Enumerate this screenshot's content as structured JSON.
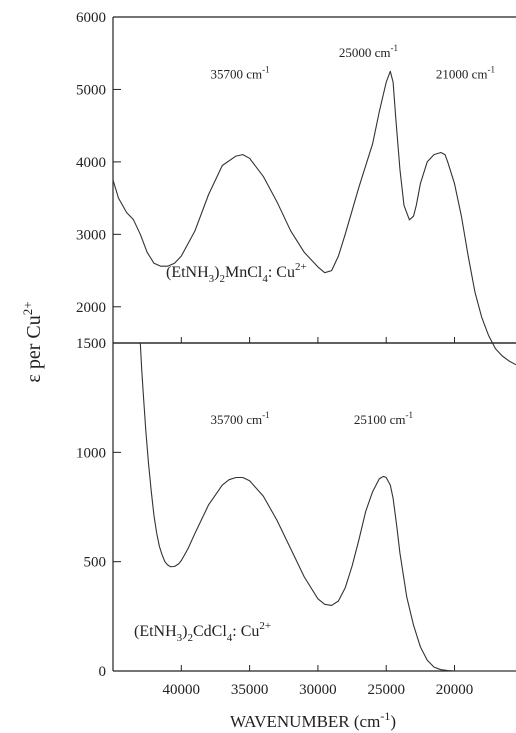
{
  "chart_data": {
    "type": "line",
    "ylabel": {
      "main": "ε per Cu",
      "sup": "2+"
    },
    "xlabel": {
      "main": "WAVENUMBER (cm",
      "sup": "-1",
      "end": ")"
    },
    "x_ticks": [
      40000,
      35000,
      30000,
      25000,
      20000
    ],
    "x_tick_labels": [
      "40000",
      "35000",
      "30000",
      "25000",
      "20000"
    ],
    "xlim": [
      45000,
      15500
    ],
    "panels": [
      {
        "id": "top",
        "sample": {
          "a": "(EtNH",
          "s1": "3",
          "b": ")",
          "s2": "2",
          "c": "MnCl",
          "s3": "4",
          "d": ": Cu",
          "sup": "2+"
        },
        "ylim": [
          1500,
          6000
        ],
        "y_ticks": [
          1500,
          2000,
          3000,
          4000,
          5000,
          6000
        ],
        "y_tick_labels": [
          "1500",
          "2000",
          "3000",
          "4000",
          "5000",
          "6000"
        ],
        "annotations": [
          {
            "value": "35700 cm",
            "sup": "-1",
            "x": 35700,
            "y": 5150
          },
          {
            "value": "25000 cm",
            "sup": "-1",
            "x": 26300,
            "y": 5450
          },
          {
            "value": "21000 cm",
            "sup": "-1",
            "x": 19200,
            "y": 5150
          }
        ],
        "series": [
          {
            "x": [
              45000,
              44600,
              44000,
              43500,
              43000,
              42500,
              42000,
              41500,
              41000,
              40500,
              40000,
              39000,
              38000,
              37000,
              36000,
              35500,
              35000,
              34000,
              33000,
              32000,
              31000,
              30000,
              29500,
              29000,
              28500,
              28000,
              27000,
              26000,
              25500,
              25000,
              24700,
              24500,
              24300,
              24000,
              23700,
              23300,
              23000,
              22800,
              22500,
              22000,
              21500,
              21000,
              20700,
              20500,
              20000,
              19500,
              19000,
              18500,
              18000,
              17500,
              17000,
              16500,
              16000,
              15500
            ],
            "y": [
              3750,
              3500,
              3300,
              3200,
              3000,
              2750,
              2600,
              2560,
              2560,
              2600,
              2700,
              3050,
              3550,
              3950,
              4080,
              4100,
              4050,
              3800,
              3450,
              3050,
              2750,
              2550,
              2470,
              2500,
              2700,
              3000,
              3650,
              4250,
              4700,
              5100,
              5250,
              5100,
              4600,
              3900,
              3400,
              3200,
              3250,
              3400,
              3700,
              4000,
              4100,
              4130,
              4100,
              4000,
              3700,
              3250,
              2700,
              2200,
              1850,
              1600,
              1420,
              1320,
              1250,
              1200
            ]
          }
        ]
      },
      {
        "id": "bottom",
        "sample": {
          "a": "(EtNH",
          "s1": "3",
          "b": ")",
          "s2": "2",
          "c": "CdCl",
          "s3": "4",
          "d": ": Cu",
          "sup": "2+"
        },
        "ylim": [
          0,
          1500
        ],
        "y_ticks": [
          0,
          500,
          1000,
          1500
        ],
        "y_tick_labels": [
          "0",
          "500",
          "1000",
          "1500"
        ],
        "annotations": [
          {
            "value": "35700 cm",
            "sup": "-1",
            "x": 35700,
            "y": 1130
          },
          {
            "value": "25100 cm",
            "sup": "-1",
            "x": 25200,
            "y": 1130
          }
        ],
        "series": [
          {
            "x": [
              43000,
              42900,
              42800,
              42600,
              42400,
              42200,
              42000,
              41800,
              41600,
              41400,
              41200,
              41000,
              40800,
              40500,
              40200,
              40000,
              39500,
              39000,
              38000,
              37000,
              36500,
              36000,
              35500,
              35000,
              34000,
              33000,
              32000,
              31000,
              30000,
              29500,
              29000,
              28500,
              28000,
              27500,
              27000,
              26500,
              26000,
              25500,
              25200,
              25000,
              24700,
              24500,
              24200,
              24000,
              23700,
              23500,
              23000,
              22500,
              22000,
              21500,
              21000,
              20500,
              20000,
              19500,
              19000,
              18000,
              17000,
              16000,
              15500
            ],
            "y": [
              1500,
              1380,
              1280,
              1100,
              950,
              820,
              710,
              630,
              570,
              530,
              500,
              485,
              477,
              478,
              490,
              505,
              560,
              630,
              760,
              850,
              875,
              885,
              885,
              870,
              800,
              690,
              560,
              430,
              330,
              305,
              300,
              320,
              380,
              480,
              600,
              730,
              820,
              880,
              890,
              885,
              850,
              790,
              650,
              540,
              420,
              340,
              210,
              110,
              50,
              18,
              6,
              2,
              0,
              0,
              0,
              0,
              0,
              0,
              0
            ]
          }
        ]
      }
    ]
  }
}
